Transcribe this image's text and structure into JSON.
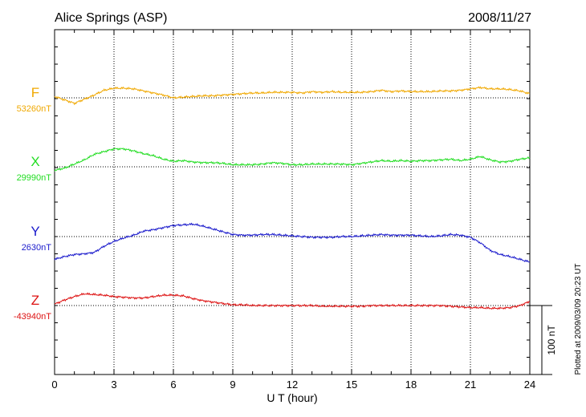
{
  "chart_data": {
    "type": "line",
    "title": "Alice Springs (ASP)",
    "date": "2008/11/27",
    "xlabel": "U T (hour)",
    "xlim": [
      0,
      24
    ],
    "x_ticks": [
      "0",
      "3",
      "6",
      "9",
      "12",
      "15",
      "18",
      "21",
      "24"
    ],
    "scale_label": "100 nT",
    "plotted_note": "Plotted at 2009/03/09 20:23 UT",
    "series": [
      {
        "name": "F",
        "baseline_label": "53260nT",
        "color": "#f0a800",
        "x": [
          0,
          0.5,
          1,
          1.5,
          2,
          2.5,
          3,
          3.5,
          4,
          4.5,
          5,
          5.5,
          6,
          6.5,
          7,
          7.5,
          8,
          8.5,
          9,
          9.5,
          10,
          10.5,
          11,
          11.5,
          12,
          12.5,
          13,
          13.5,
          14,
          14.5,
          15,
          15.5,
          16,
          16.5,
          17,
          17.5,
          18,
          18.5,
          19,
          19.5,
          20,
          20.5,
          21,
          21.5,
          22,
          22.5,
          23,
          23.5,
          24
        ],
        "values": [
          2,
          -3,
          -8,
          -2,
          4,
          11,
          14,
          14,
          13,
          10,
          7,
          4,
          0,
          1,
          2,
          3,
          3,
          4,
          5,
          6,
          7,
          7,
          8,
          8,
          8,
          7,
          9,
          8,
          9,
          8,
          8,
          8,
          9,
          11,
          9,
          10,
          9,
          9,
          9,
          10,
          10,
          11,
          13,
          15,
          13,
          13,
          12,
          10,
          6
        ]
      },
      {
        "name": "X",
        "baseline_label": "29990nT",
        "color": "#22dd22",
        "x": [
          0,
          0.5,
          1,
          1.5,
          2,
          2.5,
          3,
          3.5,
          4,
          4.5,
          5,
          5.5,
          6,
          6.5,
          7,
          7.5,
          8,
          8.5,
          9,
          9.5,
          10,
          10.5,
          11,
          11.5,
          12,
          12.5,
          13,
          13.5,
          14,
          14.5,
          15,
          15.5,
          16,
          16.5,
          17,
          17.5,
          18,
          18.5,
          19,
          19.5,
          20,
          20.5,
          21,
          21.5,
          22,
          22.5,
          23,
          23.5,
          24
        ],
        "values": [
          -5,
          -2,
          4,
          10,
          18,
          22,
          26,
          26,
          23,
          19,
          16,
          11,
          8,
          9,
          7,
          6,
          6,
          5,
          3,
          3,
          3,
          4,
          6,
          5,
          3,
          3,
          4,
          4,
          4,
          4,
          3,
          5,
          7,
          9,
          8,
          9,
          8,
          9,
          9,
          10,
          11,
          9,
          11,
          15,
          10,
          7,
          8,
          11,
          13
        ]
      },
      {
        "name": "Y",
        "baseline_label": "2630nT",
        "color": "#1a1acc",
        "x": [
          0,
          0.5,
          1,
          1.5,
          2,
          2.5,
          3,
          3.5,
          4,
          4.5,
          5,
          5.5,
          6,
          6.5,
          7,
          7.5,
          8,
          8.5,
          9,
          9.5,
          10,
          10.5,
          11,
          11.5,
          12,
          12.5,
          13,
          13.5,
          14,
          14.5,
          15,
          15.5,
          16,
          16.5,
          17,
          17.5,
          18,
          18.5,
          19,
          19.5,
          20,
          20.5,
          21,
          21.5,
          22,
          22.5,
          23,
          23.5,
          24
        ],
        "values": [
          -33,
          -29,
          -26,
          -25,
          -23,
          -14,
          -7,
          -2,
          2,
          8,
          10,
          13,
          16,
          17,
          18,
          15,
          11,
          7,
          3,
          2,
          2,
          3,
          3,
          2,
          1,
          0,
          -1,
          -1,
          -1,
          0,
          0,
          1,
          2,
          3,
          2,
          2,
          2,
          1,
          0,
          1,
          3,
          2,
          -1,
          -9,
          -20,
          -26,
          -29,
          -33,
          -37
        ]
      },
      {
        "name": "Z",
        "baseline_label": "-43940nT",
        "color": "#dd1111",
        "x": [
          0,
          0.5,
          1,
          1.5,
          2,
          2.5,
          3,
          3.5,
          4,
          4.5,
          5,
          5.5,
          6,
          6.5,
          7,
          7.5,
          8,
          8.5,
          9,
          9.5,
          10,
          10.5,
          11,
          11.5,
          12,
          12.5,
          13,
          13.5,
          14,
          14.5,
          15,
          15.5,
          16,
          16.5,
          17,
          17.5,
          18,
          18.5,
          19,
          19.5,
          20,
          20.5,
          21,
          21.5,
          22,
          22.5,
          23,
          23.5,
          24
        ],
        "values": [
          2,
          8,
          13,
          17,
          16,
          15,
          13,
          12,
          11,
          11,
          13,
          15,
          15,
          14,
          10,
          7,
          5,
          3,
          1,
          1,
          0,
          0,
          0,
          0,
          0,
          0,
          0,
          -1,
          -1,
          -1,
          -1,
          -1,
          0,
          0,
          0,
          0,
          0,
          0,
          0,
          0,
          -1,
          -2,
          -3,
          -3,
          -4,
          -4,
          -3,
          0,
          6
        ]
      }
    ]
  }
}
